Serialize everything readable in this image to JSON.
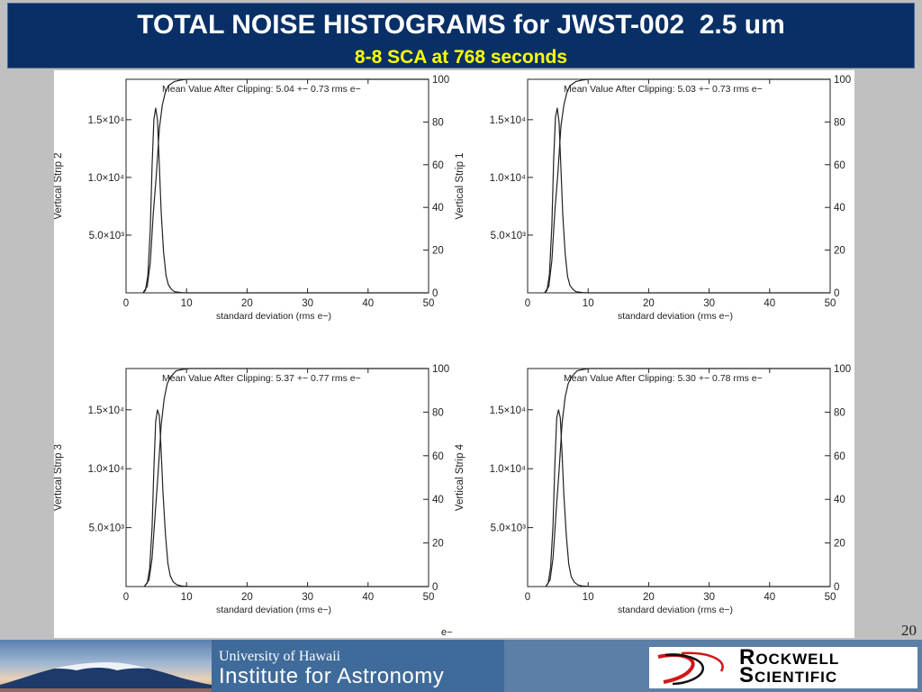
{
  "slide": {
    "title": "TOTAL NOISE HISTOGRAMS for JWST-002  2.5 um",
    "subtitle": "8-8 SCA at 768 seconds",
    "page_number": "20",
    "stray_label": "e−"
  },
  "footer": {
    "institute_line1": "University of Hawaii",
    "institute_line2": "Institute for Astronomy",
    "company_line1": "Rockwell",
    "company_line2": "Scientific",
    "colors": {
      "band": "#5b7fa6",
      "title_bg": "#083066",
      "subtitle": "#ffff00",
      "logo_red": "#d01818"
    }
  },
  "chart_data": [
    {
      "type": "line",
      "ylabel": "Vertical Strip 2",
      "xlabel": "standard deviation (rms e−)",
      "annotation": "Mean Value After Clipping:   5.04 +− 0.73 rms e−",
      "xlim": [
        0,
        50
      ],
      "ylim": [
        0,
        18500
      ],
      "right_ylim": [
        0,
        100
      ],
      "xticks": [
        "0",
        "10",
        "20",
        "30",
        "40",
        "50"
      ],
      "yticks_left": [
        {
          "value": 5000,
          "label": "5.0×10³"
        },
        {
          "value": 10000,
          "label": "1.0×10⁴"
        },
        {
          "value": 15000,
          "label": "1.5×10⁴"
        }
      ],
      "yticks_right": [
        "0",
        "20",
        "40",
        "60",
        "80",
        "100"
      ],
      "series": [
        {
          "kind": "histogram",
          "x": [
            2.8,
            3.2,
            3.6,
            4.0,
            4.3,
            4.6,
            4.9,
            5.2,
            5.5,
            5.8,
            6.2,
            6.6,
            7.0,
            7.5,
            8.0,
            9.0,
            10.0,
            50.0
          ],
          "y": [
            0,
            200,
            1500,
            5500,
            11000,
            15000,
            16000,
            15000,
            11000,
            7000,
            3500,
            1500,
            700,
            300,
            100,
            30,
            0,
            0
          ]
        },
        {
          "kind": "cumulative",
          "x": [
            2.8,
            3.5,
            4.0,
            4.5,
            5.0,
            5.5,
            6.0,
            6.5,
            7.0,
            8.0,
            9.0,
            10.0,
            50.0
          ],
          "y": [
            0,
            3,
            14,
            37,
            55,
            77,
            88,
            94,
            97,
            99,
            99.6,
            100,
            100
          ]
        }
      ]
    },
    {
      "type": "line",
      "ylabel": "Vertical Strip 1",
      "xlabel": "standard deviation (rms e−)",
      "annotation": "Mean Value After Clipping:   5.03 +− 0.73 rms e−",
      "xlim": [
        0,
        50
      ],
      "ylim": [
        0,
        18500
      ],
      "right_ylim": [
        0,
        100
      ],
      "xticks": [
        "0",
        "10",
        "20",
        "30",
        "40",
        "50"
      ],
      "yticks_left": [
        {
          "value": 5000,
          "label": "5.0×10³"
        },
        {
          "value": 10000,
          "label": "1.0×10⁴"
        },
        {
          "value": 15000,
          "label": "1.5×10⁴"
        }
      ],
      "yticks_right": [
        "0",
        "20",
        "40",
        "60",
        "80",
        "100"
      ],
      "series": [
        {
          "kind": "histogram",
          "x": [
            2.8,
            3.2,
            3.6,
            4.0,
            4.3,
            4.6,
            4.9,
            5.2,
            5.5,
            5.8,
            6.2,
            6.6,
            7.0,
            7.5,
            8.0,
            9.0,
            10.0,
            50.0
          ],
          "y": [
            0,
            200,
            1600,
            5800,
            11500,
            15200,
            16000,
            14800,
            10800,
            6800,
            3400,
            1400,
            650,
            280,
            100,
            30,
            0,
            0
          ]
        },
        {
          "kind": "cumulative",
          "x": [
            2.8,
            3.5,
            4.0,
            4.5,
            5.0,
            5.5,
            6.0,
            6.5,
            7.0,
            8.0,
            9.0,
            10.0,
            50.0
          ],
          "y": [
            0,
            3,
            15,
            38,
            56,
            78,
            88,
            94,
            97,
            99,
            99.6,
            100,
            100
          ]
        }
      ]
    },
    {
      "type": "line",
      "ylabel": "Vertical Strip 3",
      "xlabel": "standard deviation (rms e−)",
      "annotation": "Mean Value After Clipping:   5.37 +− 0.77 rms e−",
      "xlim": [
        0,
        50
      ],
      "ylim": [
        0,
        18500
      ],
      "right_ylim": [
        0,
        100
      ],
      "xticks": [
        "0",
        "10",
        "20",
        "30",
        "40",
        "50"
      ],
      "yticks_left": [
        {
          "value": 5000,
          "label": "5.0×10³"
        },
        {
          "value": 10000,
          "label": "1.0×10⁴"
        },
        {
          "value": 15000,
          "label": "1.5×10⁴"
        }
      ],
      "yticks_right": [
        "0",
        "20",
        "40",
        "60",
        "80",
        "100"
      ],
      "series": [
        {
          "kind": "histogram",
          "x": [
            3.0,
            3.5,
            3.9,
            4.3,
            4.6,
            4.9,
            5.2,
            5.5,
            5.8,
            6.1,
            6.5,
            6.9,
            7.3,
            7.8,
            8.4,
            9.2,
            10.5,
            50.0
          ],
          "y": [
            0,
            300,
            1500,
            5000,
            10000,
            14000,
            15000,
            14500,
            11500,
            8000,
            4500,
            2000,
            900,
            400,
            150,
            50,
            0,
            0
          ]
        },
        {
          "kind": "cumulative",
          "x": [
            3.0,
            3.8,
            4.3,
            4.8,
            5.3,
            5.8,
            6.3,
            6.8,
            7.3,
            8.3,
            9.3,
            10.5,
            50.0
          ],
          "y": [
            0,
            3,
            13,
            33,
            52,
            74,
            86,
            93,
            96,
            99,
            99.6,
            100,
            100
          ]
        }
      ]
    },
    {
      "type": "line",
      "ylabel": "Vertical Strip 4",
      "xlabel": "standard deviation (rms e−)",
      "annotation": "Mean Value After Clipping:   5.30 +− 0.78 rms e−",
      "xlim": [
        0,
        50
      ],
      "ylim": [
        0,
        18500
      ],
      "right_ylim": [
        0,
        100
      ],
      "xticks": [
        "0",
        "10",
        "20",
        "30",
        "40",
        "50"
      ],
      "yticks_left": [
        {
          "value": 5000,
          "label": "5.0×10³"
        },
        {
          "value": 10000,
          "label": "1.0×10⁴"
        },
        {
          "value": 15000,
          "label": "1.5×10⁴"
        }
      ],
      "yticks_right": [
        "0",
        "20",
        "40",
        "60",
        "80",
        "100"
      ],
      "series": [
        {
          "kind": "histogram",
          "x": [
            3.0,
            3.4,
            3.8,
            4.2,
            4.5,
            4.8,
            5.1,
            5.4,
            5.7,
            6.0,
            6.4,
            6.8,
            7.2,
            7.7,
            8.3,
            9.1,
            10.3,
            50.0
          ],
          "y": [
            0,
            300,
            1600,
            5200,
            10300,
            14300,
            15000,
            14300,
            11200,
            7700,
            4300,
            1900,
            850,
            380,
            140,
            45,
            0,
            0
          ]
        },
        {
          "kind": "cumulative",
          "x": [
            3.0,
            3.7,
            4.2,
            4.7,
            5.2,
            5.7,
            6.2,
            6.7,
            7.2,
            8.2,
            9.2,
            10.3,
            50.0
          ],
          "y": [
            0,
            3,
            13,
            34,
            53,
            75,
            87,
            93,
            96,
            99,
            99.6,
            100,
            100
          ]
        }
      ]
    }
  ]
}
